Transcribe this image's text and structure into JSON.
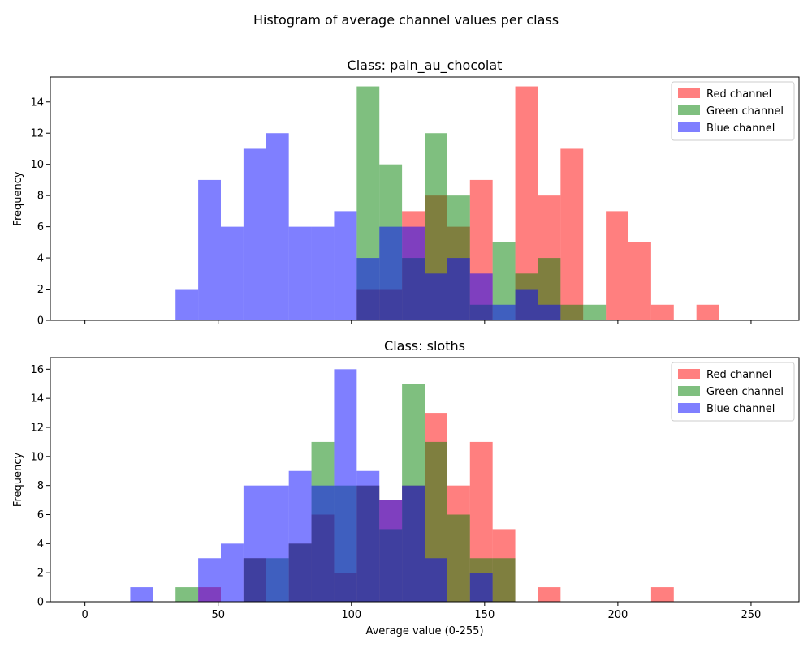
{
  "figure": {
    "suptitle": "Histogram of average channel values per class"
  },
  "colors": {
    "red": "#ff0000",
    "green": "#008000",
    "blue": "#0000ff",
    "bar_alpha": 0.5
  },
  "chart_data": [
    {
      "type": "bar",
      "title": "Class: pain_au_chocolat",
      "xlabel": "",
      "ylabel": "Frequency",
      "xlim": [
        -13,
        268
      ],
      "ylim": [
        0,
        15.6
      ],
      "xticks": [
        0,
        50,
        100,
        150,
        200,
        250
      ],
      "yticks": [
        0,
        2,
        4,
        6,
        8,
        10,
        12,
        14
      ],
      "show_xtick_labels": false,
      "legend_position": "top-right",
      "bin_edges": [
        0.0,
        8.5,
        17.0,
        25.5,
        34.0,
        42.5,
        51.0,
        59.5,
        68.0,
        76.5,
        85.0,
        93.5,
        102.0,
        110.5,
        119.0,
        127.5,
        136.0,
        144.5,
        153.0,
        161.5,
        170.0,
        178.5,
        187.0,
        195.5,
        204.0,
        212.5,
        221.0,
        229.5,
        238.0,
        246.5,
        255.0
      ],
      "series": [
        {
          "name": "Red channel",
          "color": "red",
          "values": [
            0,
            0,
            0,
            0,
            0,
            0,
            0,
            0,
            0,
            0,
            0,
            0,
            2,
            2,
            7,
            8,
            6,
            9,
            0,
            15,
            8,
            11,
            0,
            7,
            5,
            1,
            0,
            1,
            0,
            0
          ]
        },
        {
          "name": "Green channel",
          "color": "green",
          "values": [
            0,
            0,
            0,
            0,
            0,
            0,
            0,
            0,
            0,
            0,
            0,
            0,
            15,
            10,
            4,
            12,
            8,
            1,
            5,
            3,
            4,
            1,
            1,
            0,
            0,
            0,
            0,
            0,
            0,
            0
          ]
        },
        {
          "name": "Blue channel",
          "color": "blue",
          "values": [
            0,
            0,
            0,
            0,
            2,
            9,
            6,
            11,
            12,
            6,
            6,
            7,
            4,
            6,
            6,
            3,
            4,
            3,
            1,
            2,
            1,
            0,
            0,
            0,
            0,
            0,
            0,
            0,
            0,
            0
          ]
        }
      ]
    },
    {
      "type": "bar",
      "title": "Class: sloths",
      "xlabel": "Average value (0-255)",
      "ylabel": "Frequency",
      "xlim": [
        -13,
        268
      ],
      "ylim": [
        0,
        16.8
      ],
      "xticks": [
        0,
        50,
        100,
        150,
        200,
        250
      ],
      "yticks": [
        0,
        2,
        4,
        6,
        8,
        10,
        12,
        14,
        16
      ],
      "show_xtick_labels": true,
      "legend_position": "top-right",
      "bin_edges": [
        0.0,
        8.5,
        17.0,
        25.5,
        34.0,
        42.5,
        51.0,
        59.5,
        68.0,
        76.5,
        85.0,
        93.5,
        102.0,
        110.5,
        119.0,
        127.5,
        136.0,
        144.5,
        153.0,
        161.5,
        170.0,
        178.5,
        187.0,
        195.5,
        204.0,
        212.5,
        221.0,
        229.5,
        238.0,
        246.5,
        255.0
      ],
      "series": [
        {
          "name": "Red channel",
          "color": "red",
          "values": [
            0,
            0,
            0,
            0,
            0,
            1,
            0,
            3,
            0,
            4,
            6,
            2,
            8,
            7,
            8,
            13,
            8,
            11,
            5,
            0,
            1,
            0,
            0,
            0,
            0,
            1,
            0,
            0,
            0,
            0
          ]
        },
        {
          "name": "Green channel",
          "color": "green",
          "values": [
            0,
            0,
            0,
            0,
            1,
            0,
            0,
            3,
            3,
            4,
            11,
            8,
            8,
            5,
            15,
            11,
            6,
            3,
            3,
            0,
            0,
            0,
            0,
            0,
            0,
            0,
            0,
            0,
            0,
            0
          ]
        },
        {
          "name": "Blue channel",
          "color": "blue",
          "values": [
            0,
            0,
            1,
            0,
            0,
            3,
            4,
            8,
            8,
            9,
            8,
            16,
            9,
            7,
            8,
            3,
            0,
            2,
            0,
            0,
            0,
            0,
            0,
            0,
            0,
            0,
            0,
            0,
            0,
            0
          ]
        }
      ]
    }
  ]
}
